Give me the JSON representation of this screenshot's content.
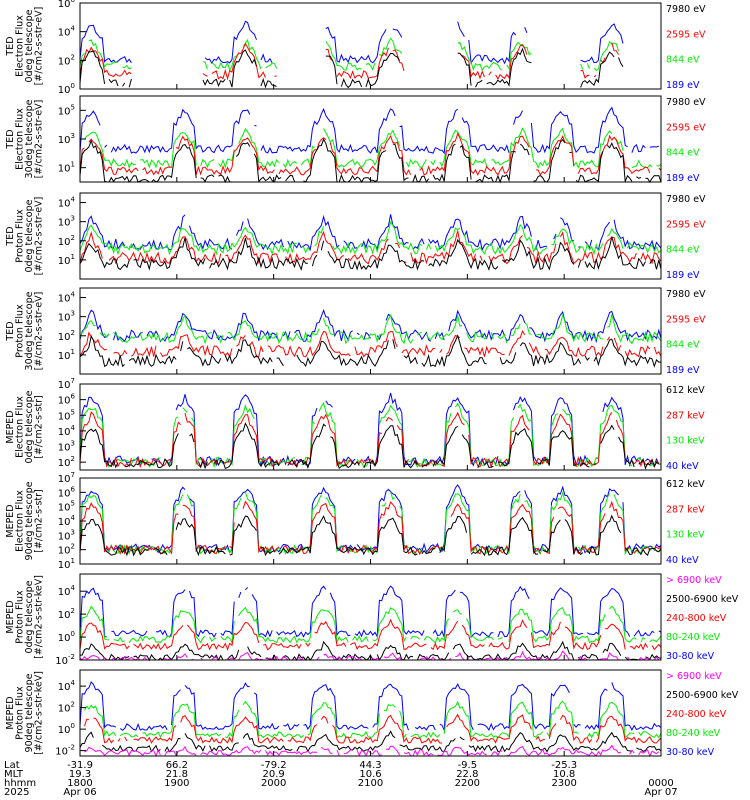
{
  "colors": {
    "black": "#000000",
    "red": "#ff0000",
    "green": "#00ee00",
    "blue": "#0000ff",
    "magenta": "#ff00ff",
    "frame": "#000000"
  },
  "chart_data": [
    {
      "type": "line",
      "ylabel": [
        "TED",
        "Electron Flux",
        "0deg telescope",
        "[#/cm2-s-str-eV]"
      ],
      "yscale": "log",
      "ylim_exp": [
        0,
        6
      ],
      "ticks": [
        {
          "base": "10",
          "exp": "0",
          "v": 0
        },
        {
          "base": "10",
          "exp": "2",
          "v": 2
        },
        {
          "base": "10",
          "exp": "4",
          "v": 4
        },
        {
          "base": "10",
          "exp": "6",
          "v": 6
        }
      ],
      "legend": [
        {
          "text": "7980 eV",
          "color": "black"
        },
        {
          "text": "2595 eV",
          "color": "red"
        },
        {
          "text": "844 eV",
          "color": "green"
        },
        {
          "text": "189 eV",
          "color": "blue"
        }
      ],
      "series": [
        {
          "color": "blue",
          "gap": [
            {
              "a": 0.09,
              "b": 0.21
            },
            {
              "a": 0.34,
              "b": 0.42
            },
            {
              "a": 0.56,
              "b": 0.65
            },
            {
              "a": 0.78,
              "b": 0.86
            },
            {
              "a": 0.935,
              "b": 1.0
            }
          ],
          "base": 2.1,
          "pk": 4.6
        },
        {
          "color": "green",
          "gap": [
            {
              "a": 0.09,
              "b": 0.21
            },
            {
              "a": 0.34,
              "b": 0.42
            },
            {
              "a": 0.56,
              "b": 0.65
            },
            {
              "a": 0.78,
              "b": 0.86
            },
            {
              "a": 0.935,
              "b": 1.0
            }
          ],
          "base": 1.6,
          "pk": 3.4
        },
        {
          "color": "red",
          "gap": [
            {
              "a": 0.09,
              "b": 0.21
            },
            {
              "a": 0.34,
              "b": 0.42
            },
            {
              "a": 0.56,
              "b": 0.65
            },
            {
              "a": 0.78,
              "b": 0.86
            },
            {
              "a": 0.935,
              "b": 1.0
            }
          ],
          "base": 1.0,
          "pk": 3.0
        },
        {
          "color": "black",
          "gap": [
            {
              "a": 0.09,
              "b": 0.21
            },
            {
              "a": 0.34,
              "b": 0.42
            },
            {
              "a": 0.56,
              "b": 0.65
            },
            {
              "a": 0.78,
              "b": 0.86
            },
            {
              "a": 0.935,
              "b": 1.0
            }
          ],
          "base": 0.4,
          "pk": 2.7
        }
      ],
      "peaks": [
        0.02,
        0.18,
        0.285,
        0.42,
        0.535,
        0.65,
        0.76,
        0.83,
        0.915
      ]
    },
    {
      "type": "line",
      "ylabel": [
        "TED",
        "Electron Flux",
        "30deg telescope",
        "[#/cm2-s-str-eV]"
      ],
      "yscale": "log",
      "ylim_exp": [
        0,
        6
      ],
      "ticks": [
        {
          "base": "10",
          "exp": "1",
          "v": 1
        },
        {
          "base": "10",
          "exp": "3",
          "v": 3
        },
        {
          "base": "10",
          "exp": "5",
          "v": 5
        }
      ],
      "legend": [
        {
          "text": "7980 eV",
          "color": "black"
        },
        {
          "text": "2595 eV",
          "color": "red"
        },
        {
          "text": "844 eV",
          "color": "green"
        },
        {
          "text": "189 eV",
          "color": "blue"
        }
      ],
      "series": [
        {
          "color": "blue",
          "gap": [],
          "base": 2.3,
          "pk": 5.0
        },
        {
          "color": "green",
          "gap": [],
          "base": 1.3,
          "pk": 3.6
        },
        {
          "color": "red",
          "gap": [],
          "base": 0.8,
          "pk": 3.2
        },
        {
          "color": "black",
          "gap": [],
          "base": 0.2,
          "pk": 2.8
        }
      ],
      "peaks": [
        0.02,
        0.18,
        0.285,
        0.42,
        0.535,
        0.65,
        0.76,
        0.83,
        0.915
      ]
    },
    {
      "type": "line",
      "ylabel": [
        "TED",
        "Proton Flux",
        "0deg telescope",
        "[#/cm2-s-str-eV]"
      ],
      "yscale": "log",
      "ylim_exp": [
        0,
        4.5
      ],
      "ticks": [
        {
          "base": "10",
          "exp": "1",
          "v": 1
        },
        {
          "base": "10",
          "exp": "2",
          "v": 2
        },
        {
          "base": "10",
          "exp": "3",
          "v": 3
        },
        {
          "base": "10",
          "exp": "4",
          "v": 4
        }
      ],
      "legend": [
        {
          "text": "7980 eV",
          "color": "black"
        },
        {
          "text": "2595 eV",
          "color": "red"
        },
        {
          "text": "844 eV",
          "color": "green"
        },
        {
          "text": "189 eV",
          "color": "blue"
        }
      ],
      "series": [
        {
          "color": "blue",
          "gap": [],
          "base": 1.8,
          "pk": 3.2
        },
        {
          "color": "green",
          "gap": [],
          "base": 1.6,
          "pk": 2.8
        },
        {
          "color": "red",
          "gap": [],
          "base": 1.1,
          "pk": 2.3
        },
        {
          "color": "black",
          "gap": [],
          "base": 0.8,
          "pk": 2.0
        }
      ],
      "peaks": [
        0.02,
        0.18,
        0.285,
        0.42,
        0.535,
        0.65,
        0.76,
        0.83,
        0.915
      ]
    },
    {
      "type": "line",
      "ylabel": [
        "TED",
        "Proton Flux",
        "30deg telescope",
        "[#/cm2-s-str-eV]"
      ],
      "yscale": "log",
      "ylim_exp": [
        0,
        4.5
      ],
      "ticks": [
        {
          "base": "10",
          "exp": "1",
          "v": 1
        },
        {
          "base": "10",
          "exp": "2",
          "v": 2
        },
        {
          "base": "10",
          "exp": "3",
          "v": 3
        },
        {
          "base": "10",
          "exp": "4",
          "v": 4
        }
      ],
      "legend": [
        {
          "text": "7980 eV",
          "color": "black"
        },
        {
          "text": "2595 eV",
          "color": "red"
        },
        {
          "text": "844 eV",
          "color": "green"
        },
        {
          "text": "189 eV",
          "color": "blue"
        }
      ],
      "series": [
        {
          "color": "blue",
          "gap": [],
          "base": 2.0,
          "pk": 3.2
        },
        {
          "color": "green",
          "gap": [],
          "base": 1.9,
          "pk": 2.9
        },
        {
          "color": "red",
          "gap": [],
          "base": 1.2,
          "pk": 2.2
        },
        {
          "color": "black",
          "gap": [],
          "base": 0.7,
          "pk": 1.8
        }
      ],
      "peaks": [
        0.02,
        0.18,
        0.285,
        0.42,
        0.535,
        0.65,
        0.76,
        0.83,
        0.915
      ]
    },
    {
      "type": "line",
      "ylabel": [
        "MEPED",
        "Electron Flux",
        "0deg telescope",
        "[#/cm2-s-str]"
      ],
      "yscale": "log",
      "ylim_exp": [
        1.5,
        7
      ],
      "ticks": [
        {
          "base": "10",
          "exp": "2",
          "v": 2
        },
        {
          "base": "10",
          "exp": "3",
          "v": 3
        },
        {
          "base": "10",
          "exp": "4",
          "v": 4
        },
        {
          "base": "10",
          "exp": "5",
          "v": 5
        },
        {
          "base": "10",
          "exp": "6",
          "v": 6
        },
        {
          "base": "10",
          "exp": "7",
          "v": 7
        }
      ],
      "legend": [
        {
          "text": "612 keV",
          "color": "black"
        },
        {
          "text": "287 keV",
          "color": "red"
        },
        {
          "text": "130 keV",
          "color": "green"
        },
        {
          "text": "40 keV",
          "color": "blue"
        }
      ],
      "series": [
        {
          "color": "blue",
          "gap": [],
          "base": 2.1,
          "pk": 6.2
        },
        {
          "color": "green",
          "gap": [],
          "base": 2.0,
          "pk": 5.6
        },
        {
          "color": "red",
          "gap": [],
          "base": 2.0,
          "pk": 5.0
        },
        {
          "color": "black",
          "gap": [],
          "base": 1.9,
          "pk": 4.3
        }
      ],
      "peaks": [
        0.02,
        0.18,
        0.285,
        0.42,
        0.535,
        0.65,
        0.76,
        0.83,
        0.915
      ]
    },
    {
      "type": "line",
      "ylabel": [
        "MEPED",
        "Electron Flux",
        "90deg telescope",
        "[#/cm2-s-str]"
      ],
      "yscale": "log",
      "ylim_exp": [
        1,
        7
      ],
      "ticks": [
        {
          "base": "10",
          "exp": "1",
          "v": 1
        },
        {
          "base": "10",
          "exp": "2",
          "v": 2
        },
        {
          "base": "10",
          "exp": "3",
          "v": 3
        },
        {
          "base": "10",
          "exp": "4",
          "v": 4
        },
        {
          "base": "10",
          "exp": "5",
          "v": 5
        },
        {
          "base": "10",
          "exp": "6",
          "v": 6
        },
        {
          "base": "10",
          "exp": "7",
          "v": 7
        }
      ],
      "legend": [
        {
          "text": "612 keV",
          "color": "black"
        },
        {
          "text": "287 keV",
          "color": "red"
        },
        {
          "text": "130 keV",
          "color": "green"
        },
        {
          "text": "40 keV",
          "color": "blue"
        }
      ],
      "series": [
        {
          "color": "blue",
          "gap": [],
          "base": 2.1,
          "pk": 6.3
        },
        {
          "color": "green",
          "gap": [],
          "base": 2.0,
          "pk": 5.9
        },
        {
          "color": "red",
          "gap": [],
          "base": 2.0,
          "pk": 5.2
        },
        {
          "color": "black",
          "gap": [],
          "base": 1.9,
          "pk": 4.3
        }
      ],
      "peaks": [
        0.02,
        0.18,
        0.285,
        0.42,
        0.535,
        0.65,
        0.76,
        0.83,
        0.915
      ]
    },
    {
      "type": "line",
      "ylabel": [
        "MEPED",
        "Proton Flux",
        "0deg telescope",
        "[#/cm2-s-str-keV]"
      ],
      "yscale": "log",
      "ylim_exp": [
        -2,
        5.5
      ],
      "ticks": [
        {
          "base": "10",
          "exp": "-2",
          "v": -2
        },
        {
          "base": "10",
          "exp": "0",
          "v": 0
        },
        {
          "base": "10",
          "exp": "2",
          "v": 2
        },
        {
          "base": "10",
          "exp": "4",
          "v": 4
        }
      ],
      "legend": [
        {
          "text": "> 6900 keV",
          "color": "magenta"
        },
        {
          "text": "2500-6900 keV",
          "color": "black"
        },
        {
          "text": "240-800 keV",
          "color": "red"
        },
        {
          "text": "80-240 keV",
          "color": "green"
        },
        {
          "text": "30-80 keV",
          "color": "blue"
        }
      ],
      "series": [
        {
          "color": "blue",
          "gap": [],
          "base": 0.3,
          "pk": 4.3
        },
        {
          "color": "green",
          "gap": [],
          "base": -0.2,
          "pk": 2.5
        },
        {
          "color": "red",
          "gap": [],
          "base": -0.8,
          "pk": 1.3
        },
        {
          "color": "black",
          "gap": [],
          "base": -1.8,
          "pk": -0.6
        },
        {
          "color": "magenta",
          "gap": [],
          "base": -2.0,
          "pk": -1.4
        }
      ],
      "peaks": [
        0.02,
        0.18,
        0.285,
        0.42,
        0.535,
        0.65,
        0.76,
        0.83,
        0.915
      ]
    },
    {
      "type": "line",
      "ylabel": [
        "MEPED",
        "Proton Flux",
        "90deg telescope",
        "[#/cm2-s-str-keV]"
      ],
      "yscale": "log",
      "ylim_exp": [
        -2.5,
        5.5
      ],
      "ticks": [
        {
          "base": "10",
          "exp": "-2",
          "v": -2
        },
        {
          "base": "10",
          "exp": "0",
          "v": 0
        },
        {
          "base": "10",
          "exp": "2",
          "v": 2
        },
        {
          "base": "10",
          "exp": "4",
          "v": 4
        }
      ],
      "legend": [
        {
          "text": "> 6900 keV",
          "color": "magenta"
        },
        {
          "text": "2500-6900 keV",
          "color": "black"
        },
        {
          "text": "240-800 keV",
          "color": "red"
        },
        {
          "text": "80-240 keV",
          "color": "green"
        },
        {
          "text": "30-80 keV",
          "color": "blue"
        }
      ],
      "series": [
        {
          "color": "blue",
          "gap": [],
          "base": 0.2,
          "pk": 4.2
        },
        {
          "color": "green",
          "gap": [],
          "base": -0.5,
          "pk": 2.4
        },
        {
          "color": "red",
          "gap": [],
          "base": -1.0,
          "pk": 1.2
        },
        {
          "color": "black",
          "gap": [],
          "base": -1.8,
          "pk": -0.4
        },
        {
          "color": "magenta",
          "gap": [],
          "base": -2.2,
          "pk": -1.6
        }
      ],
      "peaks": [
        0.02,
        0.18,
        0.285,
        0.42,
        0.535,
        0.65,
        0.76,
        0.83,
        0.915
      ]
    }
  ],
  "xaxis": {
    "row_labels": [
      "Lat",
      "MLT",
      "hhmm",
      "2025"
    ],
    "columns": [
      {
        "lat": "-31.9",
        "mlt": "19.3",
        "hhmm": "1800",
        "date": "Apr 06"
      },
      {
        "lat": "66.2",
        "mlt": "21.8",
        "hhmm": "1900",
        "date": ""
      },
      {
        "lat": "-79.2",
        "mlt": "20.9",
        "hhmm": "2000",
        "date": ""
      },
      {
        "lat": "44.3",
        "mlt": "10.6",
        "hhmm": "2100",
        "date": ""
      },
      {
        "lat": "-9.5",
        "mlt": "22.8",
        "hhmm": "2200",
        "date": ""
      },
      {
        "lat": "-25.3",
        "mlt": "10.8",
        "hhmm": "2300",
        "date": ""
      },
      {
        "lat": "",
        "mlt": "",
        "hhmm": "0000",
        "date": "Apr 07"
      }
    ]
  }
}
